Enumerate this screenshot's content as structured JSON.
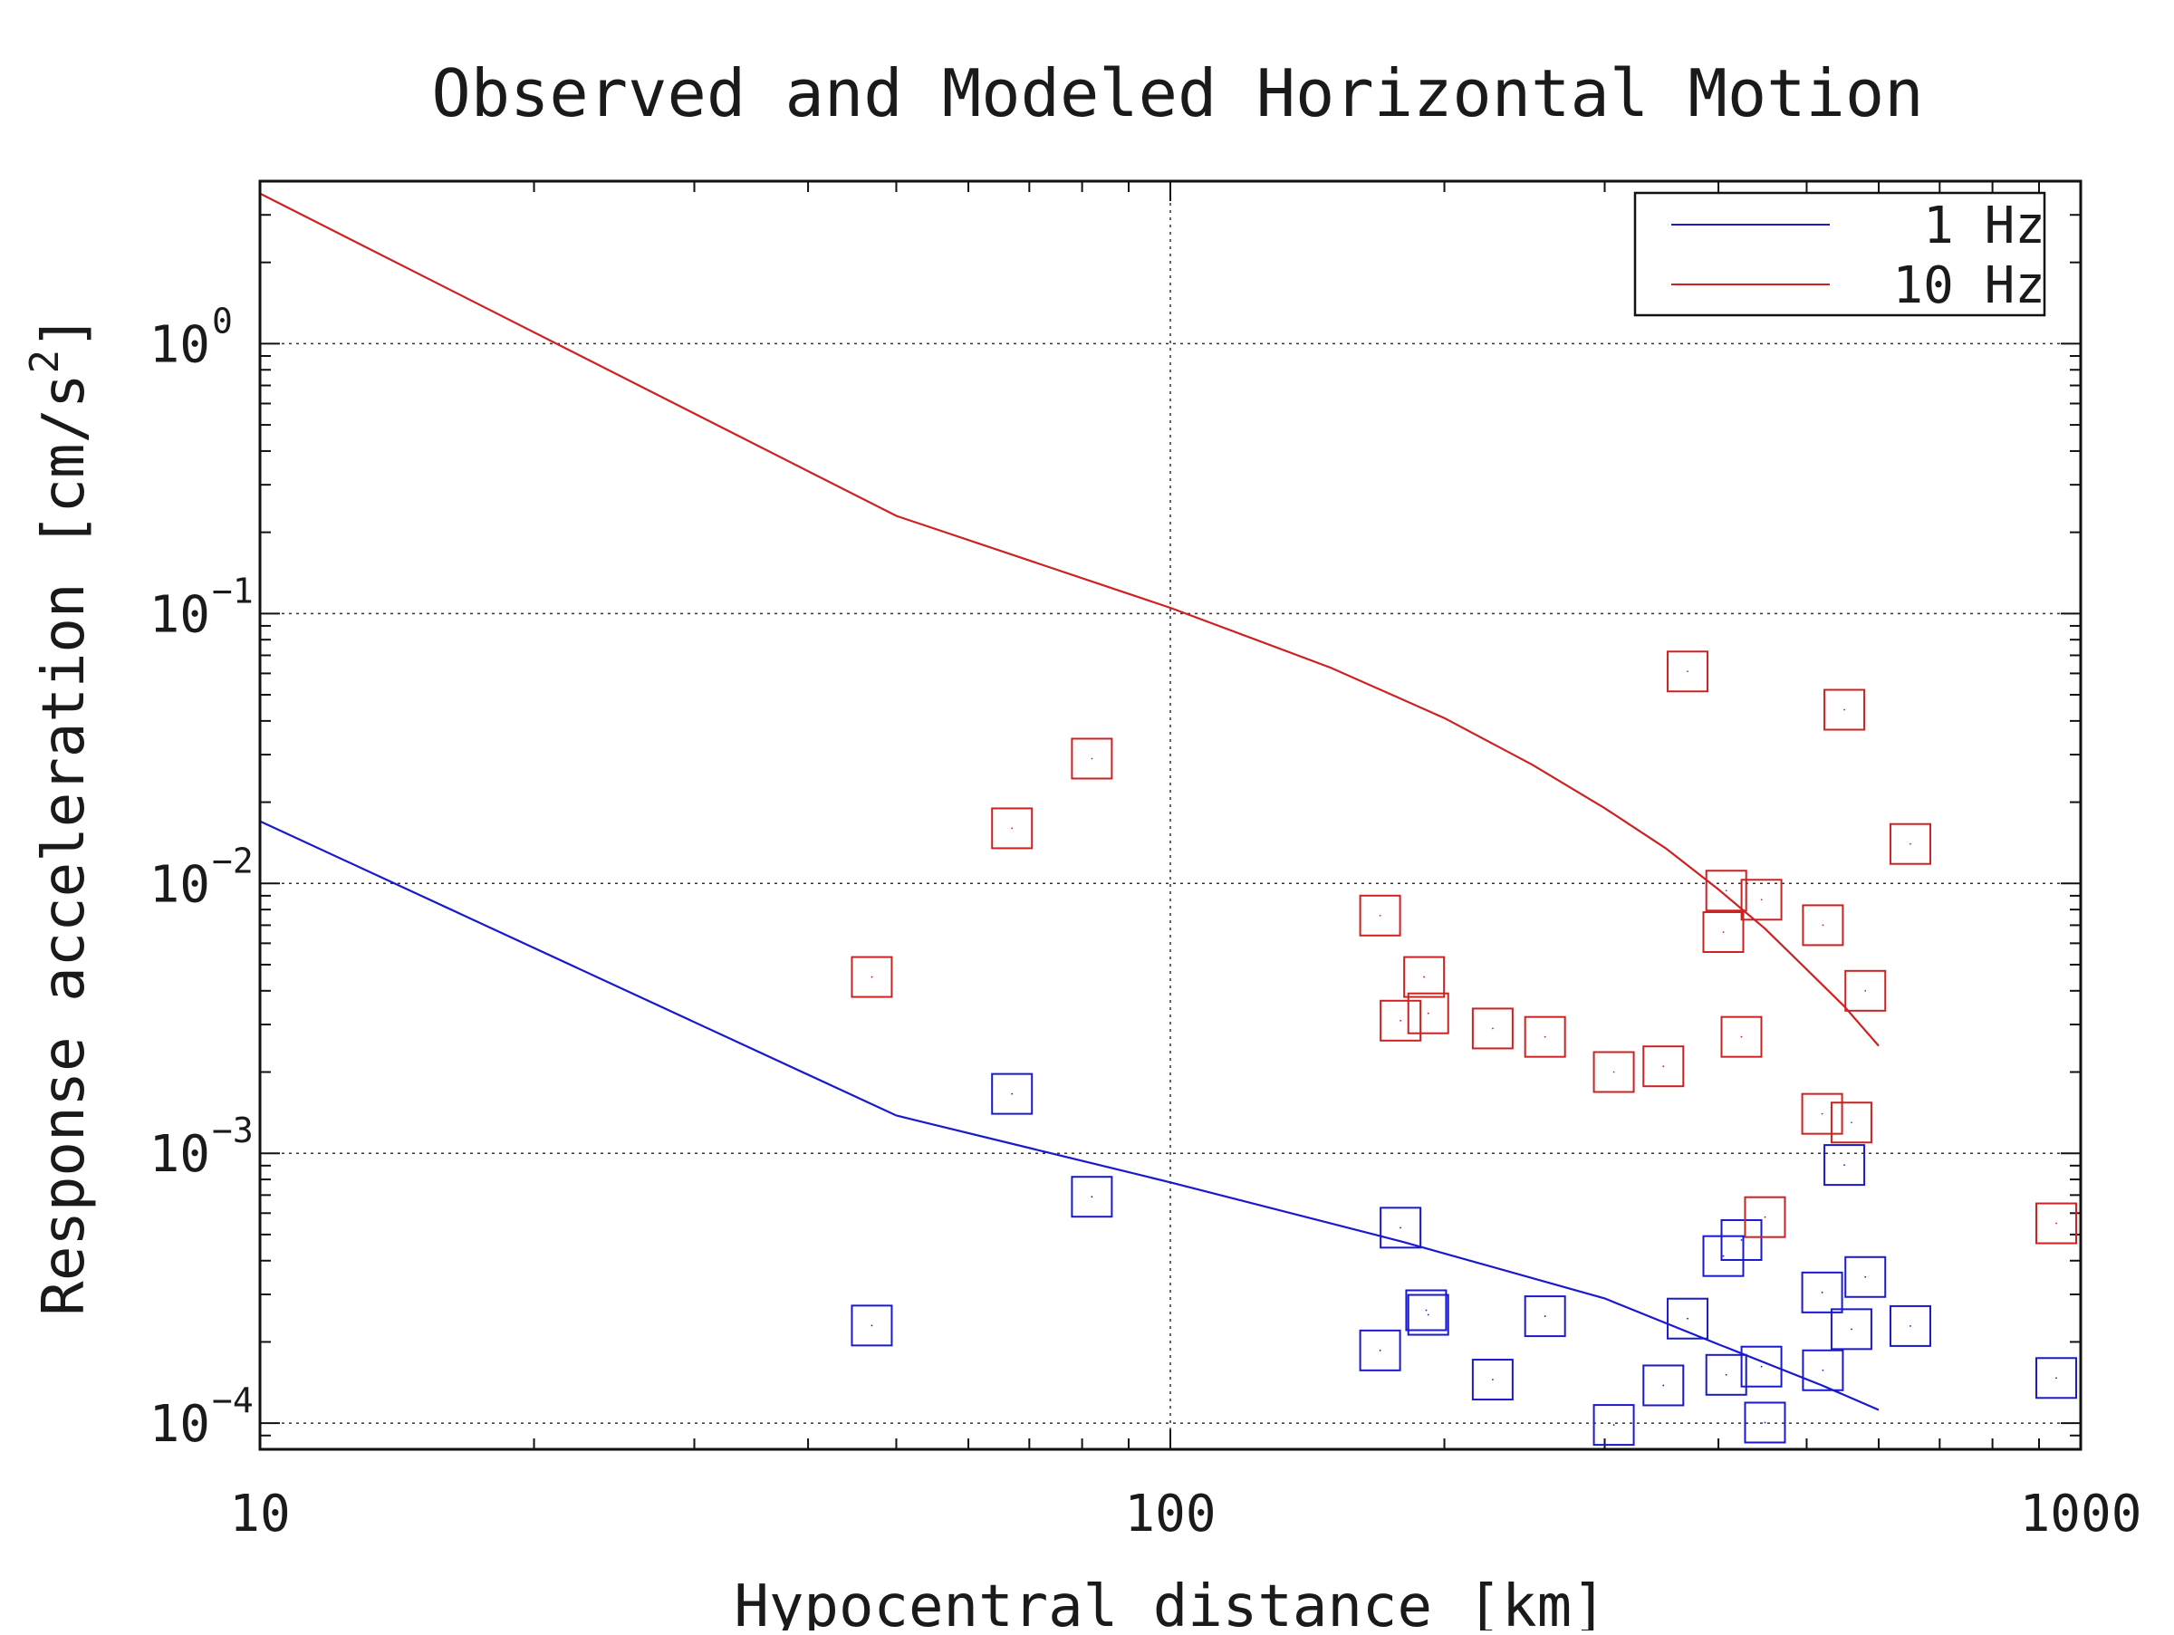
{
  "chart_data": {
    "type": "scatter",
    "title": "Observed and Modeled Horizontal Motion",
    "xlabel": "Hypocentral distance [km]",
    "ylabel_prefix": "Response acceleration [cm/s",
    "ylabel_sup": "2",
    "ylabel_suffix": "]",
    "xscale": "log",
    "yscale": "log",
    "xlim": [
      10,
      1000
    ],
    "ylim": [
      8e-05,
      4
    ],
    "grid": true,
    "legend_position": "top-right",
    "xticks": [
      {
        "value": 10,
        "label": "10"
      },
      {
        "value": 100,
        "label": "100"
      },
      {
        "value": 1000,
        "label": "1000"
      }
    ],
    "yticks": [
      {
        "value": 1,
        "base": "10",
        "exp": "0"
      },
      {
        "value": 0.1,
        "base": "10",
        "exp": "−1"
      },
      {
        "value": 0.01,
        "base": "10",
        "exp": "−2"
      },
      {
        "value": 0.001,
        "base": "10",
        "exp": "−3"
      },
      {
        "value": 0.0001,
        "base": "10",
        "exp": "−4"
      }
    ],
    "series": [
      {
        "name": "1 Hz",
        "color": "#1a1acc",
        "model_line": {
          "x": [
            10,
            50,
            100,
            180,
            300,
            400,
            520,
            600
          ],
          "y": [
            0.017,
            0.00138,
            0.00078,
            0.00047,
            0.00029,
            0.000196,
            0.000138,
            0.000112
          ]
        },
        "observed": {
          "x": [
            47,
            67,
            82,
            170,
            179,
            191,
            192,
            226,
            258,
            307,
            348,
            370,
            405,
            408,
            424,
            446,
            450,
            520,
            521,
            550,
            560,
            580,
            650,
            940
          ],
          "y": [
            0.00023,
            0.00166,
            0.00069,
            0.000186,
            0.00053,
            0.000262,
            0.000252,
            0.000145,
            0.000249,
            9.85e-05,
            0.000138,
            0.000244,
            0.000416,
            0.000151,
            0.000477,
            0.000162,
            0.0001005,
            0.000305,
            0.000157,
            0.000905,
            0.000223,
            0.000348,
            0.000229,
            0.000147
          ]
        }
      },
      {
        "name": "10 Hz",
        "color": "#cc2222",
        "model_line": {
          "x": [
            10,
            50,
            100,
            150,
            200,
            250,
            300,
            350,
            400,
            450,
            500,
            550,
            600
          ],
          "y": [
            3.6,
            0.23,
            0.105,
            0.063,
            0.041,
            0.0275,
            0.019,
            0.0135,
            0.0095,
            0.0068,
            0.0048,
            0.0035,
            0.0025
          ]
        },
        "observed": {
          "x": [
            47,
            67,
            82,
            170,
            179,
            190,
            192,
            226,
            258,
            307,
            348,
            370,
            405,
            408,
            424,
            446,
            450,
            520,
            521,
            550,
            560,
            580,
            650,
            940
          ],
          "y": [
            0.0045,
            0.016,
            0.029,
            0.0076,
            0.0031,
            0.0045,
            0.0033,
            0.0029,
            0.0027,
            0.002,
            0.0021,
            0.061,
            0.0066,
            0.0094,
            0.0027,
            0.0087,
            0.00058,
            0.0014,
            0.007,
            0.044,
            0.0013,
            0.004,
            0.014,
            0.00055
          ]
        }
      }
    ]
  }
}
